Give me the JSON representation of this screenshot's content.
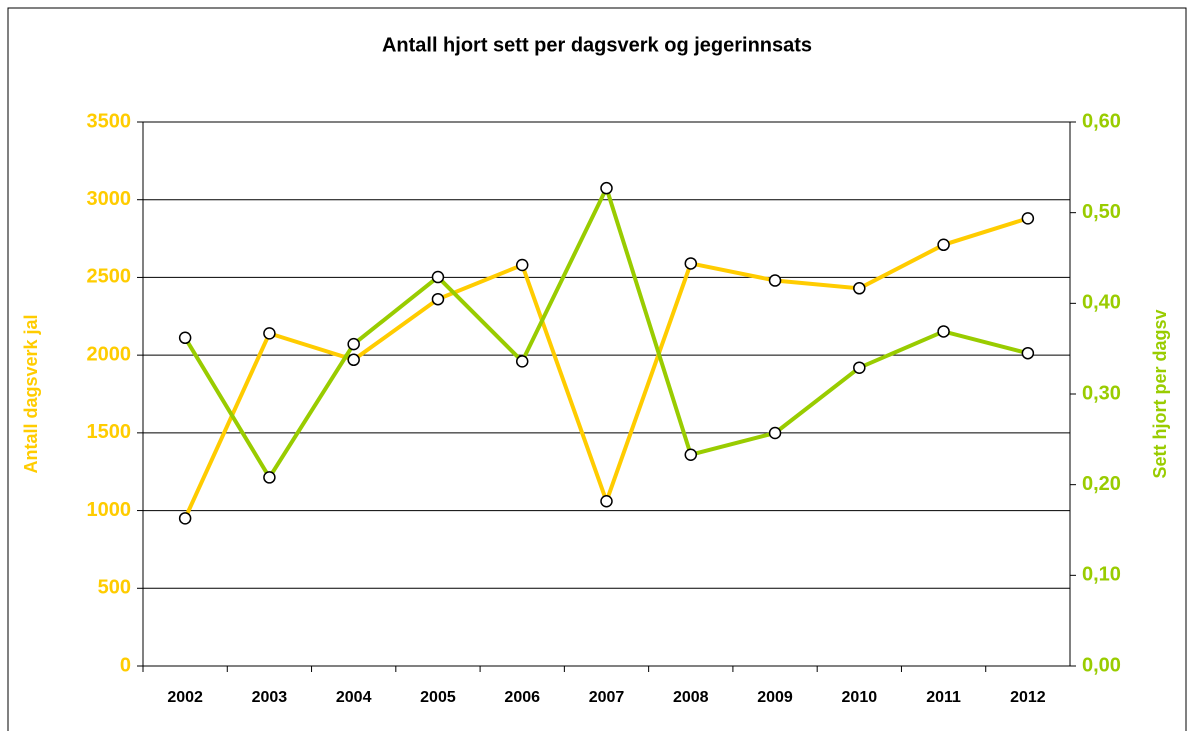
{
  "chart_data": {
    "type": "line",
    "title": "Antall hjort sett per dagsverk og jegerinnsats",
    "y_label": "Antall dagsverk jal",
    "y2_label": "Sett hjort per dagsv",
    "categories": [
      "2002",
      "2003",
      "2004",
      "2005",
      "2006",
      "2007",
      "2008",
      "2009",
      "2010",
      "2011",
      "2012"
    ],
    "series": [
      {
        "name": "Antall dagsverk",
        "color": "#FFCC00",
        "values": [
          950,
          2140,
          1970,
          2360,
          2580,
          1060,
          2590,
          2480,
          2430,
          2710,
          2880
        ]
      },
      {
        "name": "Sett hjort per dagsverk",
        "color": "#99CC00",
        "axis": "y2",
        "values": [
          0.362,
          0.208,
          0.355,
          0.429,
          0.336,
          0.527,
          0.233,
          0.257,
          0.329,
          0.369,
          0.345
        ]
      }
    ],
    "ylim": [
      0,
      3500
    ],
    "yticks": [
      0,
      500,
      1000,
      1500,
      2000,
      2500,
      3000,
      3500
    ],
    "y2lim": [
      0,
      0.6
    ],
    "y2ticks": [
      {
        "value": 0,
        "label": "0,00"
      },
      {
        "value": 0.1,
        "label": "0,10"
      },
      {
        "value": 0.2,
        "label": "0,20"
      },
      {
        "value": 0.3,
        "label": "0,30"
      },
      {
        "value": 0.4,
        "label": "0,40"
      },
      {
        "value": 0.5,
        "label": "0,50"
      },
      {
        "value": 0.6,
        "label": "0,60"
      }
    ],
    "grid": true
  }
}
